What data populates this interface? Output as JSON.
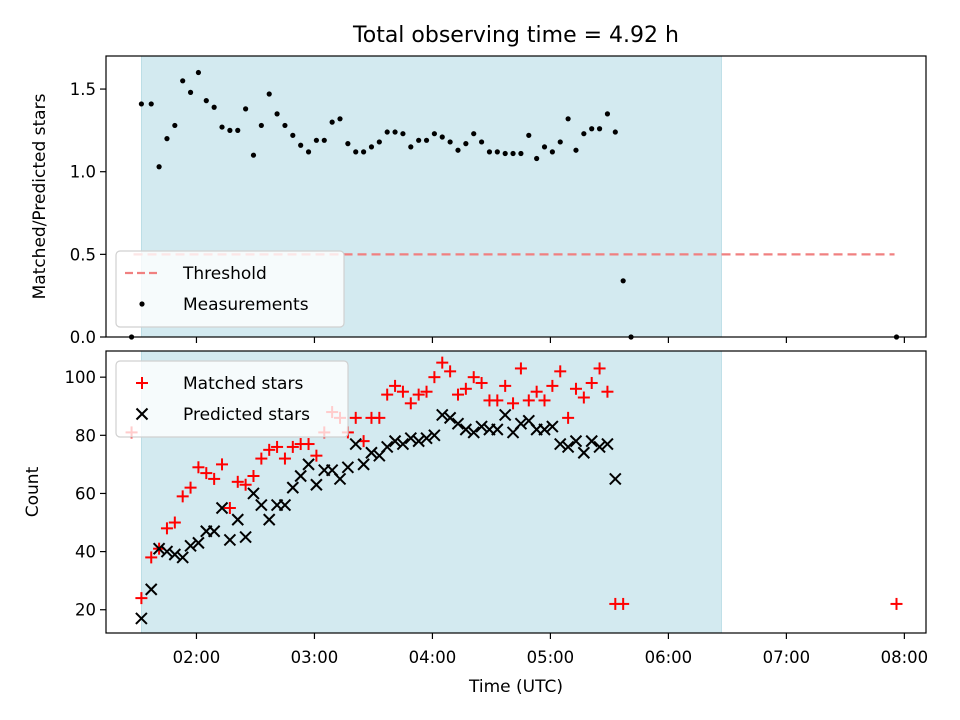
{
  "figure": {
    "title": "Total observing time = 4.92 h",
    "xlabel": "Time (UTC)"
  },
  "chart_data": [
    {
      "type": "scatter",
      "ylabel": "Matched/Predicted stars",
      "xlim": [
        "01:14",
        "08:11"
      ],
      "ylim": [
        0,
        1.7
      ],
      "yticks": [
        0.0,
        0.5,
        1.0,
        1.5
      ],
      "ytick_labels": [
        "0.0",
        "0.5",
        "1.0",
        "1.5"
      ],
      "grid": false,
      "legend_position": "lower-left",
      "observing_window": {
        "start": "01:32",
        "end": "06:27",
        "color": "#d3eaf0"
      },
      "threshold": {
        "name": "Threshold",
        "value": 0.5,
        "x_range": [
          "01:28",
          "07:55"
        ],
        "color": "#f08080",
        "style": "dashed"
      },
      "series": [
        {
          "name": "Measurements",
          "marker": "dot",
          "color": "#000000",
          "points": [
            [
              "01:27",
              0.0
            ],
            [
              "01:32",
              1.41
            ],
            [
              "01:37",
              1.41
            ],
            [
              "01:41",
              1.03
            ],
            [
              "01:45",
              1.2
            ],
            [
              "01:49",
              1.28
            ],
            [
              "01:53",
              1.55
            ],
            [
              "01:57",
              1.48
            ],
            [
              "02:01",
              1.6
            ],
            [
              "02:05",
              1.43
            ],
            [
              "02:09",
              1.39
            ],
            [
              "02:13",
              1.27
            ],
            [
              "02:17",
              1.25
            ],
            [
              "02:21",
              1.25
            ],
            [
              "02:25",
              1.38
            ],
            [
              "02:29",
              1.1
            ],
            [
              "02:33",
              1.28
            ],
            [
              "02:37",
              1.47
            ],
            [
              "02:41",
              1.35
            ],
            [
              "02:45",
              1.28
            ],
            [
              "02:49",
              1.22
            ],
            [
              "02:53",
              1.16
            ],
            [
              "02:57",
              1.12
            ],
            [
              "03:01",
              1.19
            ],
            [
              "03:05",
              1.19
            ],
            [
              "03:09",
              1.3
            ],
            [
              "03:13",
              1.32
            ],
            [
              "03:17",
              1.17
            ],
            [
              "03:21",
              1.12
            ],
            [
              "03:25",
              1.12
            ],
            [
              "03:29",
              1.15
            ],
            [
              "03:33",
              1.18
            ],
            [
              "03:37",
              1.24
            ],
            [
              "03:41",
              1.24
            ],
            [
              "03:45",
              1.23
            ],
            [
              "03:49",
              1.15
            ],
            [
              "03:53",
              1.19
            ],
            [
              "03:57",
              1.19
            ],
            [
              "04:01",
              1.23
            ],
            [
              "04:05",
              1.21
            ],
            [
              "04:09",
              1.18
            ],
            [
              "04:13",
              1.13
            ],
            [
              "04:17",
              1.17
            ],
            [
              "04:21",
              1.23
            ],
            [
              "04:25",
              1.18
            ],
            [
              "04:29",
              1.12
            ],
            [
              "04:33",
              1.12
            ],
            [
              "04:37",
              1.11
            ],
            [
              "04:41",
              1.11
            ],
            [
              "04:45",
              1.11
            ],
            [
              "04:49",
              1.22
            ],
            [
              "04:53",
              1.08
            ],
            [
              "04:57",
              1.15
            ],
            [
              "05:01",
              1.12
            ],
            [
              "05:05",
              1.18
            ],
            [
              "05:09",
              1.32
            ],
            [
              "05:13",
              1.13
            ],
            [
              "05:17",
              1.23
            ],
            [
              "05:21",
              1.26
            ],
            [
              "05:25",
              1.26
            ],
            [
              "05:29",
              1.35
            ],
            [
              "05:33",
              1.24
            ],
            [
              "05:37",
              0.34
            ],
            [
              "05:41",
              0.0
            ],
            [
              "07:56",
              0.0
            ]
          ]
        }
      ]
    },
    {
      "type": "scatter",
      "ylabel": "Count",
      "xlim": [
        "01:14",
        "08:11"
      ],
      "ylim": [
        12,
        109
      ],
      "yticks": [
        20,
        40,
        60,
        80,
        100
      ],
      "ytick_labels": [
        "20",
        "40",
        "60",
        "80",
        "100"
      ],
      "xticks": [
        "02:00",
        "03:00",
        "04:00",
        "05:00",
        "06:00",
        "07:00",
        "08:00"
      ],
      "xtick_labels": [
        "02:00",
        "03:00",
        "04:00",
        "05:00",
        "06:00",
        "07:00",
        "08:00"
      ],
      "grid": false,
      "legend_position": "upper-left",
      "observing_window": {
        "start": "01:32",
        "end": "06:27",
        "color": "#d3eaf0"
      },
      "series": [
        {
          "name": "Matched stars",
          "marker": "plus",
          "color": "#ff0000",
          "points": [
            [
              "01:27",
              81
            ],
            [
              "01:32",
              24
            ],
            [
              "01:37",
              38
            ],
            [
              "01:41",
              41
            ],
            [
              "01:45",
              48
            ],
            [
              "01:49",
              50
            ],
            [
              "01:53",
              59
            ],
            [
              "01:57",
              62
            ],
            [
              "02:01",
              69
            ],
            [
              "02:05",
              67
            ],
            [
              "02:09",
              65
            ],
            [
              "02:13",
              70
            ],
            [
              "02:17",
              55
            ],
            [
              "02:21",
              64
            ],
            [
              "02:25",
              63
            ],
            [
              "02:29",
              66
            ],
            [
              "02:33",
              72
            ],
            [
              "02:37",
              75
            ],
            [
              "02:41",
              76
            ],
            [
              "02:45",
              72
            ],
            [
              "02:49",
              76
            ],
            [
              "02:53",
              77
            ],
            [
              "02:57",
              77
            ],
            [
              "03:01",
              73
            ],
            [
              "03:05",
              81
            ],
            [
              "03:09",
              88
            ],
            [
              "03:13",
              86
            ],
            [
              "03:17",
              81
            ],
            [
              "03:21",
              86
            ],
            [
              "03:25",
              78
            ],
            [
              "03:29",
              86
            ],
            [
              "03:33",
              86
            ],
            [
              "03:37",
              94
            ],
            [
              "03:41",
              97
            ],
            [
              "03:45",
              95
            ],
            [
              "03:49",
              91
            ],
            [
              "03:53",
              94
            ],
            [
              "03:57",
              95
            ],
            [
              "04:01",
              100
            ],
            [
              "04:05",
              105
            ],
            [
              "04:09",
              102
            ],
            [
              "04:13",
              94
            ],
            [
              "04:17",
              96
            ],
            [
              "04:21",
              100
            ],
            [
              "04:25",
              98
            ],
            [
              "04:29",
              92
            ],
            [
              "04:33",
              92
            ],
            [
              "04:37",
              97
            ],
            [
              "04:41",
              91
            ],
            [
              "04:45",
              103
            ],
            [
              "04:49",
              92
            ],
            [
              "04:53",
              95
            ],
            [
              "04:57",
              92
            ],
            [
              "05:01",
              97
            ],
            [
              "05:05",
              102
            ],
            [
              "05:09",
              86
            ],
            [
              "05:13",
              96
            ],
            [
              "05:17",
              93
            ],
            [
              "05:21",
              98
            ],
            [
              "05:25",
              103
            ],
            [
              "05:29",
              95
            ],
            [
              "05:33",
              22
            ],
            [
              "05:37",
              22
            ],
            [
              "07:56",
              22
            ]
          ]
        },
        {
          "name": "Predicted stars",
          "marker": "x",
          "color": "#000000",
          "points": [
            [
              "01:32",
              17
            ],
            [
              "01:37",
              27
            ],
            [
              "01:41",
              41
            ],
            [
              "01:45",
              40
            ],
            [
              "01:49",
              39
            ],
            [
              "01:53",
              38
            ],
            [
              "01:57",
              42
            ],
            [
              "02:01",
              43
            ],
            [
              "02:05",
              47
            ],
            [
              "02:09",
              47
            ],
            [
              "02:13",
              55
            ],
            [
              "02:17",
              44
            ],
            [
              "02:21",
              51
            ],
            [
              "02:25",
              45
            ],
            [
              "02:29",
              60
            ],
            [
              "02:33",
              56
            ],
            [
              "02:37",
              51
            ],
            [
              "02:41",
              56
            ],
            [
              "02:45",
              56
            ],
            [
              "02:49",
              62
            ],
            [
              "02:53",
              66
            ],
            [
              "02:57",
              70
            ],
            [
              "03:01",
              63
            ],
            [
              "03:05",
              68
            ],
            [
              "03:09",
              68
            ],
            [
              "03:13",
              65
            ],
            [
              "03:17",
              69
            ],
            [
              "03:21",
              77
            ],
            [
              "03:25",
              70
            ],
            [
              "03:29",
              74
            ],
            [
              "03:33",
              73
            ],
            [
              "03:37",
              76
            ],
            [
              "03:41",
              78
            ],
            [
              "03:45",
              77
            ],
            [
              "03:49",
              79
            ],
            [
              "03:53",
              78
            ],
            [
              "03:57",
              79
            ],
            [
              "04:01",
              80
            ],
            [
              "04:05",
              87
            ],
            [
              "04:09",
              86
            ],
            [
              "04:13",
              84
            ],
            [
              "04:17",
              82
            ],
            [
              "04:21",
              81
            ],
            [
              "04:25",
              83
            ],
            [
              "04:29",
              82
            ],
            [
              "04:33",
              82
            ],
            [
              "04:37",
              87
            ],
            [
              "04:41",
              81
            ],
            [
              "04:45",
              84
            ],
            [
              "04:49",
              85
            ],
            [
              "04:53",
              82
            ],
            [
              "04:57",
              82
            ],
            [
              "05:01",
              83
            ],
            [
              "05:05",
              77
            ],
            [
              "05:09",
              76
            ],
            [
              "05:13",
              78
            ],
            [
              "05:17",
              74
            ],
            [
              "05:21",
              78
            ],
            [
              "05:25",
              76
            ],
            [
              "05:29",
              77
            ],
            [
              "05:33",
              65
            ]
          ]
        }
      ]
    }
  ]
}
